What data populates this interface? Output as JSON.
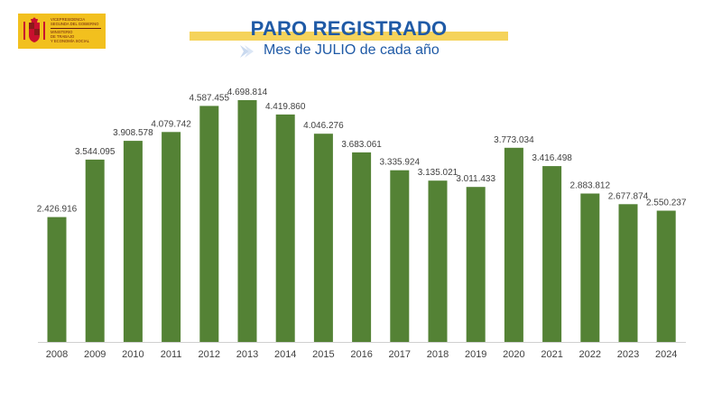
{
  "logo": {
    "line1": "VICEPRESIDENCIA\nSEGUNDA DEL GOBIERNO",
    "line2": "MINISTERIO\nDE TRABAJO\nY ECONOMÍA SOCIAL",
    "colors": {
      "background": "#f2c01e",
      "text": "#6b1b10"
    }
  },
  "header": {
    "title": "PARO REGISTRADO",
    "subtitle": "Mes de JULIO de cada año"
  },
  "colors": {
    "bar": "#548235",
    "title": "#1f5aa6",
    "band": "#f5d35b",
    "label": "#404040"
  },
  "chart_data": {
    "type": "bar",
    "title": "PARO REGISTRADO",
    "subtitle": "Mes de JULIO de cada año",
    "categories": [
      "2008",
      "2009",
      "2010",
      "2011",
      "2012",
      "2013",
      "2014",
      "2015",
      "2016",
      "2017",
      "2018",
      "2019",
      "2020",
      "2021",
      "2022",
      "2023",
      "2024"
    ],
    "values": [
      2426916,
      3544095,
      3908578,
      4079742,
      4587455,
      4698814,
      4419860,
      4046276,
      3683061,
      3335924,
      3135021,
      3011433,
      3773034,
      3416498,
      2883812,
      2677874,
      2550237
    ],
    "value_labels": [
      "2.426.916",
      "3.544.095",
      "3.908.578",
      "4.079.742",
      "4.587.455",
      "4.698.814",
      "4.419.860",
      "4.046.276",
      "3.683.061",
      "3.335.924",
      "3.135.021",
      "3.011.433",
      "3.773.034",
      "3.416.498",
      "2.883.812",
      "2.677.874",
      "2.550.237"
    ],
    "xlabel": "",
    "ylabel": "",
    "ylim": [
      0,
      4900000
    ],
    "grid": false,
    "legend": "none"
  }
}
